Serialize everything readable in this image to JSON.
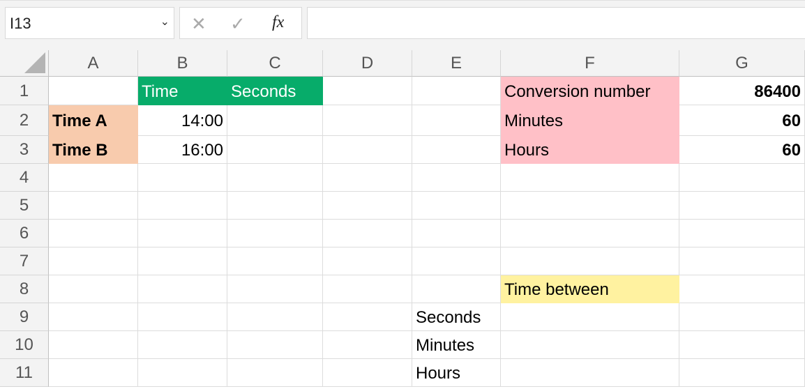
{
  "formula_bar": {
    "name_box": "I13",
    "formula": "",
    "cancel_icon": "x-icon",
    "enter_icon": "check-icon",
    "fx_label": "fx"
  },
  "columns": [
    "A",
    "B",
    "C",
    "D",
    "E",
    "F",
    "G"
  ],
  "rows": [
    "1",
    "2",
    "3",
    "4",
    "5",
    "6",
    "7",
    "8",
    "9",
    "10",
    "11"
  ],
  "cells": {
    "B1": "Time",
    "C1": "Seconds",
    "F1": "Conversion number",
    "G1": "86400",
    "A2": "Time A",
    "B2": "14:00",
    "F2": "Minutes",
    "G2": "60",
    "A3": "Time B",
    "B3": "16:00",
    "F3": "Hours",
    "G3": "60",
    "F8": "Time between",
    "E9": "Seconds",
    "E10": "Minutes",
    "E11": "Hours"
  },
  "colors": {
    "green_header": "#07ac6a",
    "orange": "#f8cbad",
    "pink": "#ffc0c7",
    "yellow": "#fff2a0"
  }
}
